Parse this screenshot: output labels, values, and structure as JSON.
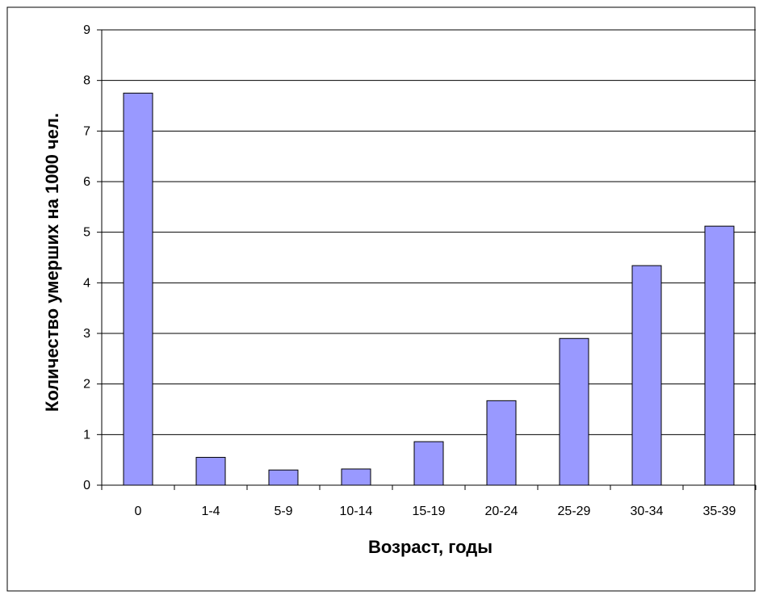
{
  "chart_data": {
    "type": "bar",
    "categories": [
      "0",
      "1-4",
      "5-9",
      "10-14",
      "15-19",
      "20-24",
      "25-29",
      "30-34",
      "35-39"
    ],
    "values": [
      7.75,
      0.55,
      0.3,
      0.32,
      0.86,
      1.67,
      2.9,
      4.34,
      5.12
    ],
    "title": "",
    "xlabel": "Возраст, годы",
    "ylabel": "Количество умерших на 1000 чел.",
    "ylim": [
      0,
      9
    ],
    "yticks": [
      "0",
      "1",
      "2",
      "3",
      "4",
      "5",
      "6",
      "7",
      "8",
      "9"
    ],
    "grid": true,
    "bar_color": "#9999ff",
    "bar_border_color": "#000000",
    "grid_color": "#000000"
  }
}
